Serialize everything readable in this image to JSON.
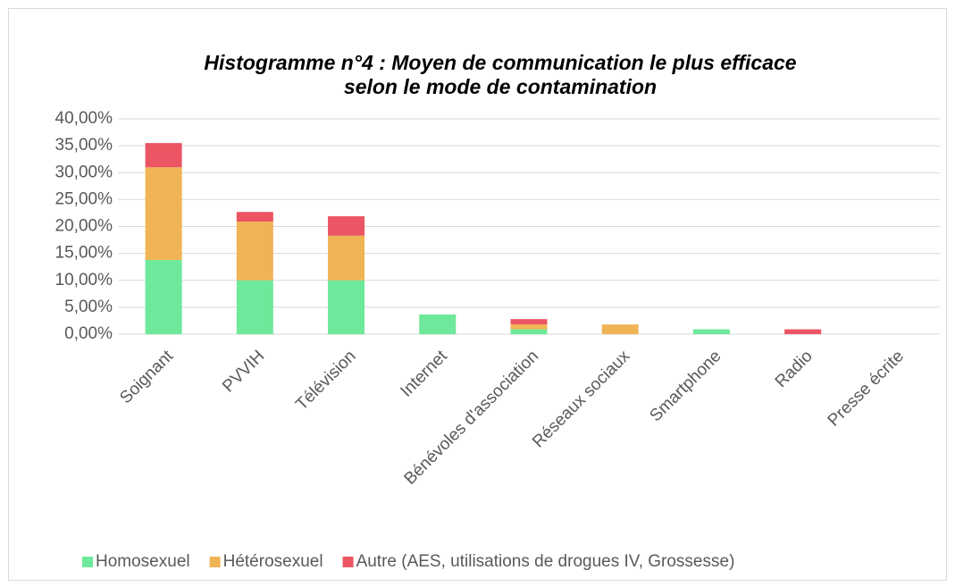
{
  "chart_data": {
    "type": "stacked_bar",
    "title": [
      "Histogramme n°4 : Moyen de communication le plus efficace",
      "selon le mode de contamination"
    ],
    "categories": [
      "Soignant",
      "PVVIH",
      "Télévision",
      "Internet",
      "Bénévoles d'association",
      "Réseaux sociaux",
      "Smartphone",
      "Radio",
      "Presse écrite"
    ],
    "series": [
      {
        "name": "Homosexuel",
        "color": "#6ee89a",
        "values": [
          13.8,
          10.0,
          10.0,
          3.65,
          0.9,
          0,
          0.9,
          0,
          0
        ]
      },
      {
        "name": "Hétérosexuel",
        "color": "#f0b454",
        "values": [
          17.2,
          10.9,
          8.3,
          0,
          0.9,
          1.8,
          0,
          0,
          0
        ]
      },
      {
        "name": "Autre (AES, utilisations de drogues IV, Grossesse)",
        "color": "#ec5563",
        "values": [
          4.5,
          1.8,
          3.6,
          0,
          1.0,
          0,
          0,
          0.9,
          0
        ]
      }
    ],
    "ylim": [
      0,
      40
    ],
    "yticks": [
      {
        "value": 0,
        "label": "0,00%"
      },
      {
        "value": 5,
        "label": "5,00%"
      },
      {
        "value": 10,
        "label": "10,00%"
      },
      {
        "value": 15,
        "label": "15,00%"
      },
      {
        "value": 20,
        "label": "20,00%"
      },
      {
        "value": 25,
        "label": "25,00%"
      },
      {
        "value": 30,
        "label": "30,00%"
      },
      {
        "value": 35,
        "label": "35,00%"
      },
      {
        "value": 40,
        "label": "40,00%"
      }
    ],
    "grid": true,
    "legend": "bottom"
  }
}
